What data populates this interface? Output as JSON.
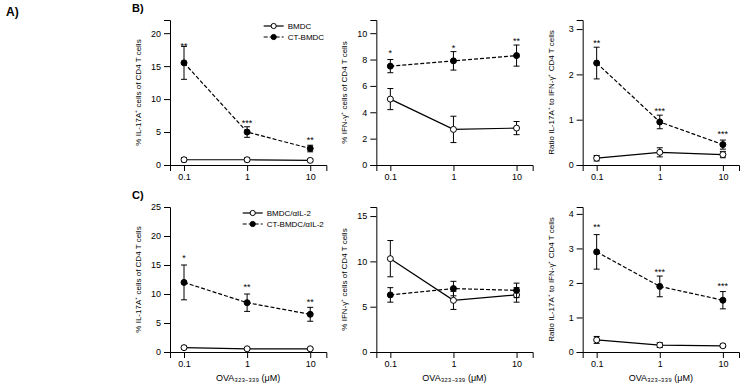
{
  "annotations": [
    {
      "text": "A)"
    }
  ],
  "chart_data": [
    {
      "type": "line",
      "title": "B)",
      "ylabel": "% IL-17A⁺ cells of CD4 T cells",
      "log": "x",
      "x": [
        0.1,
        1,
        10
      ],
      "xlim": [
        0.06,
        18
      ],
      "xticks": [
        0.1,
        1,
        10
      ],
      "ylim": [
        0,
        22
      ],
      "yticks": [
        0,
        5,
        10,
        15,
        20
      ],
      "legend": "upper right",
      "series": [
        {
          "name": "BMDC",
          "color": "#000000",
          "marker": "open-circle",
          "line_style": "solid",
          "values": [
            0.8,
            0.8,
            0.7
          ],
          "errors": [
            0.3,
            0.3,
            0.2
          ]
        },
        {
          "name": "CT-BMDC",
          "color": "#000000",
          "marker": "filled-circle",
          "line_style": "dashed",
          "values": [
            15.5,
            5.0,
            2.5
          ],
          "errors": [
            2.5,
            0.8,
            0.5
          ]
        }
      ],
      "annotations": [
        {
          "text": "**",
          "x": 0.1,
          "y": 17.5
        },
        {
          "text": "***",
          "x": 1,
          "y": 5.8
        },
        {
          "text": "**",
          "x": 10,
          "y": 3.2
        }
      ]
    },
    {
      "type": "line",
      "ylabel": "% IFN-γ⁺ cells of CD4 T cells",
      "log": "x",
      "x": [
        0.1,
        1,
        10
      ],
      "xlim": [
        0.06,
        18
      ],
      "xticks": [
        0.1,
        1,
        10
      ],
      "ylim": [
        0,
        11
      ],
      "yticks": [
        0,
        2,
        4,
        6,
        8,
        10
      ],
      "series": [
        {
          "color": "#000000",
          "marker": "open-circle",
          "line_style": "solid",
          "values": [
            5.0,
            2.7,
            2.8
          ],
          "errors": [
            0.8,
            1.0,
            0.5
          ]
        },
        {
          "color": "#000000",
          "marker": "filled-circle",
          "line_style": "dashed",
          "values": [
            7.5,
            7.9,
            8.3
          ],
          "errors": [
            0.5,
            0.7,
            0.8
          ]
        }
      ],
      "annotations": [
        {
          "text": "*",
          "x": 0.1,
          "y": 8.2
        },
        {
          "text": "*",
          "x": 1,
          "y": 8.6
        },
        {
          "text": "**",
          "x": 10,
          "y": 9.1
        }
      ]
    },
    {
      "type": "line",
      "ylabel": "Ratio IL-17A⁺ to IFN-γ⁺ CD4 T cells",
      "log": "x",
      "x": [
        0.1,
        1,
        10
      ],
      "xlim": [
        0.06,
        18
      ],
      "xticks": [
        0.1,
        1,
        10
      ],
      "ylim": [
        0,
        3.2
      ],
      "yticks": [
        0,
        1,
        2,
        3
      ],
      "series": [
        {
          "color": "#000000",
          "marker": "open-circle",
          "line_style": "solid",
          "values": [
            0.15,
            0.28,
            0.23
          ],
          "errors": [
            0.06,
            0.1,
            0.07
          ]
        },
        {
          "color": "#000000",
          "marker": "filled-circle",
          "line_style": "dashed",
          "values": [
            2.25,
            0.95,
            0.45
          ],
          "errors": [
            0.35,
            0.15,
            0.1
          ]
        }
      ],
      "annotations": [
        {
          "text": "**",
          "x": 0.1,
          "y": 2.6
        },
        {
          "text": "***",
          "x": 1,
          "y": 1.1
        },
        {
          "text": "***",
          "x": 10,
          "y": 0.6
        }
      ]
    },
    {
      "type": "line",
      "title": "C)",
      "ylabel": "% IL-17A⁺ cells of CD4 T cells",
      "xlabel": "OVA₃₂₃₋₃₃₉ (μM)",
      "log": "x",
      "x": [
        0.1,
        1,
        10
      ],
      "xlim": [
        0.06,
        18
      ],
      "xticks": [
        0.1,
        1,
        10
      ],
      "ylim": [
        0,
        25
      ],
      "yticks": [
        0,
        5,
        10,
        15,
        20,
        25
      ],
      "legend": "upper right",
      "series": [
        {
          "name": "BMDC/αIL-2",
          "color": "#000000",
          "marker": "open-circle",
          "line_style": "solid",
          "values": [
            0.75,
            0.55,
            0.55
          ],
          "errors": [
            0.25,
            0.15,
            0.15
          ]
        },
        {
          "name": "CT-BMDC/αIL-2",
          "color": "#000000",
          "marker": "filled-circle",
          "line_style": "dashed",
          "values": [
            12.0,
            8.5,
            6.5
          ],
          "errors": [
            3.0,
            1.5,
            1.2
          ]
        }
      ],
      "annotations": [
        {
          "text": "*",
          "x": 0.1,
          "y": 15.5
        },
        {
          "text": "**",
          "x": 1,
          "y": 10.5
        },
        {
          "text": "**",
          "x": 10,
          "y": 8.0
        }
      ]
    },
    {
      "type": "line",
      "ylabel": "% IFN-γ⁺ cells of CD4 T cells",
      "xlabel": "OVA₃₂₃₋₃₃₉ (μM)",
      "log": "x",
      "x": [
        0.1,
        1,
        10
      ],
      "xlim": [
        0.06,
        18
      ],
      "xticks": [
        0.1,
        1,
        10
      ],
      "ylim": [
        0,
        16
      ],
      "yticks": [
        0,
        5,
        10,
        15
      ],
      "series": [
        {
          "color": "#000000",
          "marker": "open-circle",
          "line_style": "solid",
          "values": [
            10.3,
            5.7,
            6.3
          ],
          "errors": [
            2.0,
            1.0,
            0.8
          ]
        },
        {
          "color": "#000000",
          "marker": "filled-circle",
          "line_style": "dashed",
          "values": [
            6.3,
            7.0,
            6.8
          ],
          "errors": [
            0.8,
            0.8,
            0.8
          ]
        }
      ]
    },
    {
      "type": "line",
      "ylabel": "Ratio IL-17A⁺ to IFN-γ⁺ CD4 T cells",
      "xlabel": "OVA₃₂₃₋₃₃₉ (μM)",
      "log": "x",
      "x": [
        0.1,
        1,
        10
      ],
      "xlim": [
        0.06,
        18
      ],
      "xticks": [
        0.1,
        1,
        10
      ],
      "ylim": [
        0,
        4.2
      ],
      "yticks": [
        0,
        1,
        2,
        3,
        4
      ],
      "series": [
        {
          "color": "#000000",
          "marker": "open-circle",
          "line_style": "solid",
          "values": [
            0.35,
            0.2,
            0.18
          ],
          "errors": [
            0.1,
            0.07,
            0.05
          ]
        },
        {
          "color": "#000000",
          "marker": "filled-circle",
          "line_style": "dashed",
          "values": [
            2.9,
            1.9,
            1.5
          ],
          "errors": [
            0.5,
            0.3,
            0.25
          ]
        }
      ],
      "annotations": [
        {
          "text": "**",
          "x": 0.1,
          "y": 3.5
        },
        {
          "text": "***",
          "x": 1,
          "y": 2.2
        },
        {
          "text": "***",
          "x": 10,
          "y": 1.8
        }
      ]
    }
  ]
}
